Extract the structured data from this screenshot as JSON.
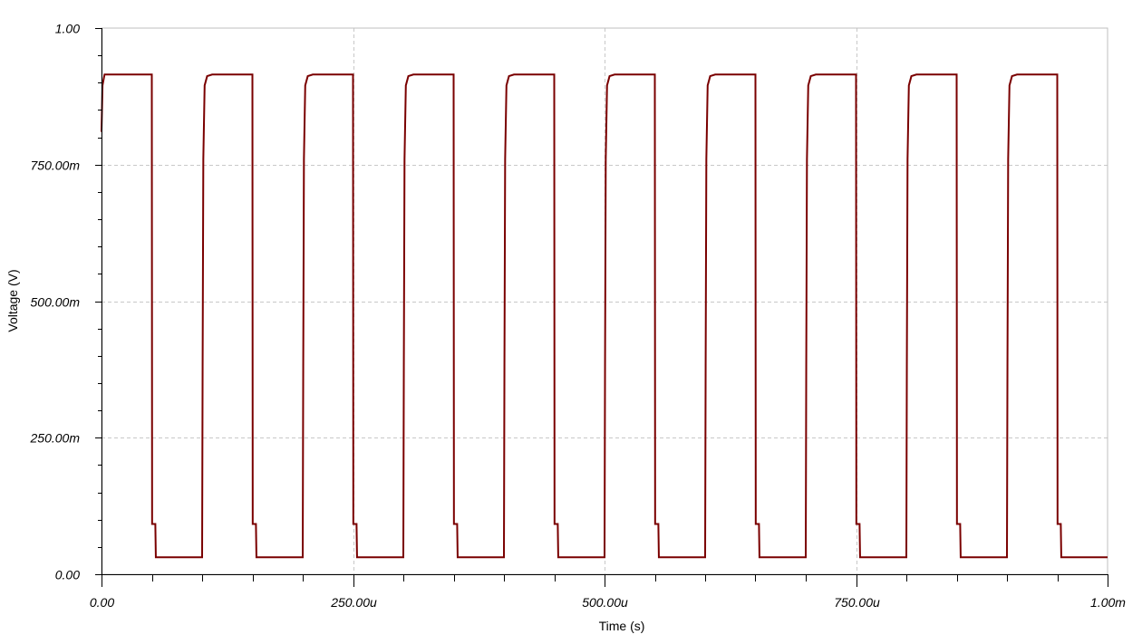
{
  "chart_data": {
    "type": "line",
    "xlabel": "Time (s)",
    "ylabel": "Voltage (V)",
    "xlim": [
      0,
      0.001
    ],
    "ylim": [
      0,
      1.0
    ],
    "grid": true,
    "x_ticks": [
      {
        "value": 0,
        "label": "0.00"
      },
      {
        "value": 0.00025,
        "label": "250.00u"
      },
      {
        "value": 0.0005,
        "label": "500.00u"
      },
      {
        "value": 0.00075,
        "label": "750.00u"
      },
      {
        "value": 0.001,
        "label": "1.00m"
      }
    ],
    "y_ticks": [
      {
        "value": 0,
        "label": "0.00"
      },
      {
        "value": 0.25,
        "label": "250.00m"
      },
      {
        "value": 0.5,
        "label": "500.00m"
      },
      {
        "value": 0.75,
        "label": "750.00m"
      },
      {
        "value": 1.0,
        "label": "1.00"
      }
    ],
    "series": [
      {
        "color": "#7a0000",
        "period_s": 0.0001,
        "high_v": 0.915,
        "low_v": 0.031,
        "fall_shoulder_v": 0.092,
        "fall_start_in_period_s": 5e-05,
        "rise_start_in_period_s": 0.0001,
        "cycles": 10,
        "initial_v": 0.81
      }
    ]
  },
  "colors": {
    "trace": "#7a0000",
    "grid": "#c8c8c8",
    "frame": "#bfbfbf",
    "axis": "#000000"
  }
}
